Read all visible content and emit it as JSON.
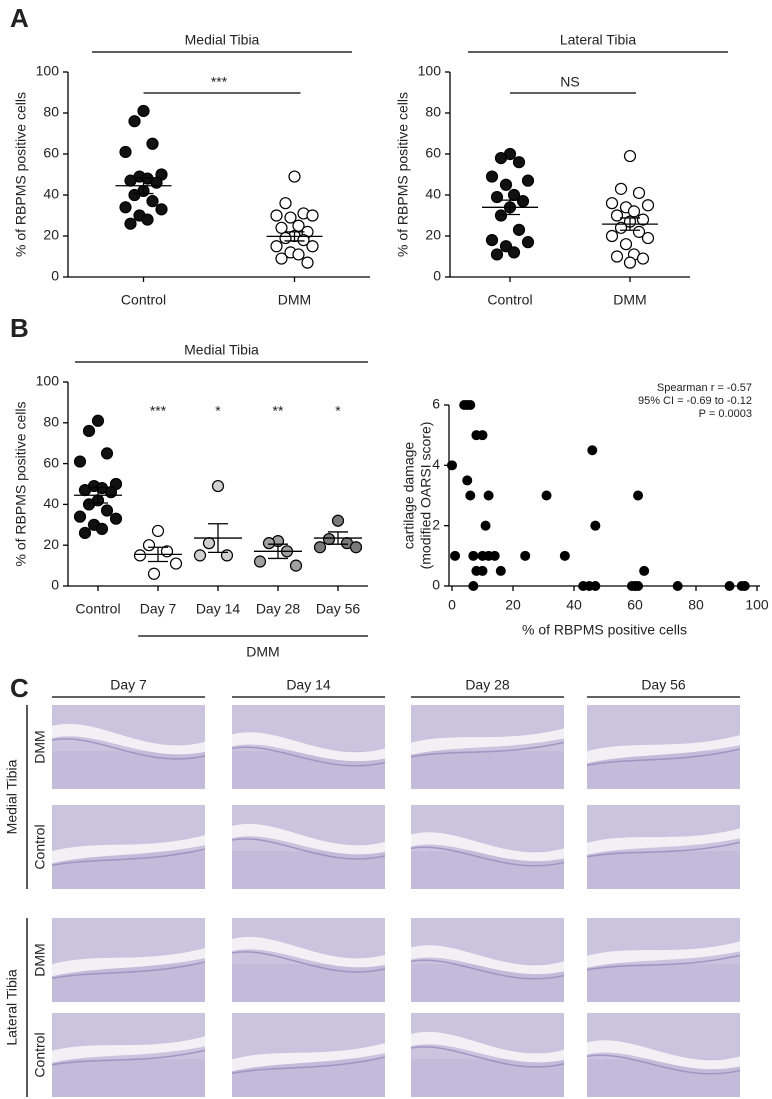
{
  "chart_data": [
    {
      "type": "dot",
      "panel": "A",
      "title": "Medial Tibia",
      "ylabel": "% of RBPMS positive cells",
      "ylim": [
        0,
        100
      ],
      "yticks": [
        0,
        20,
        40,
        60,
        80,
        100
      ],
      "comparison_label": "***",
      "groups": [
        {
          "category": "Control",
          "color": "#111111",
          "values": [
            81,
            76,
            65,
            61,
            50,
            49,
            48,
            47,
            46,
            42,
            40,
            37,
            34,
            33,
            30,
            28,
            26
          ],
          "mean": 44.5,
          "sem": 3.8
        },
        {
          "category": "DMM",
          "color": "#ffffff",
          "values": [
            49,
            36,
            31,
            30,
            30,
            29,
            25,
            24,
            22,
            20,
            19,
            18,
            15,
            15,
            12,
            11,
            9,
            7
          ],
          "mean": 19.8,
          "sem": 2.2
        }
      ]
    },
    {
      "type": "dot",
      "title": "Lateral Tibia",
      "ylabel": "% of RBPMS positive cells",
      "ylim": [
        0,
        100
      ],
      "yticks": [
        0,
        20,
        40,
        60,
        80,
        100
      ],
      "comparison_label": "NS",
      "groups": [
        {
          "category": "Control",
          "color": "#111111",
          "values": [
            60,
            58,
            56,
            49,
            47,
            45,
            40,
            39,
            37,
            34,
            30,
            23,
            18,
            17,
            15,
            12,
            11
          ],
          "mean": 34,
          "sem": 3.5
        },
        {
          "category": "DMM",
          "color": "#ffffff",
          "values": [
            59,
            43,
            41,
            36,
            35,
            34,
            32,
            30,
            28,
            27,
            24,
            22,
            20,
            19,
            16,
            11,
            10,
            9,
            7
          ],
          "mean": 25.8,
          "sem": 3
        }
      ]
    },
    {
      "type": "dot",
      "panel": "B",
      "title": "Medial Tibia",
      "ylabel": "% of RBPMS positive cells",
      "ylim": [
        0,
        100
      ],
      "yticks": [
        0,
        20,
        40,
        60,
        80,
        100
      ],
      "xgroup_label": "DMM",
      "groups": [
        {
          "category": "Control",
          "color": "#111111",
          "values": [
            81,
            76,
            65,
            61,
            50,
            49,
            48,
            47,
            46,
            42,
            40,
            37,
            34,
            33,
            30,
            28,
            26
          ],
          "mean": 44.5,
          "sem": 3.8
        },
        {
          "category": "Day 7",
          "color": "#ffffff",
          "values": [
            27,
            20,
            17,
            15,
            11,
            6
          ],
          "mean": 15.5,
          "sem": 3.5,
          "significance": "***"
        },
        {
          "category": "Day 14",
          "color": "#d0d0d0",
          "values": [
            49,
            21,
            15,
            15
          ],
          "mean": 23.5,
          "sem": 7,
          "significance": "*"
        },
        {
          "category": "Day 28",
          "color": "#a0a0a0",
          "values": [
            22,
            21,
            17,
            12,
            10
          ],
          "mean": 17,
          "sem": 3.5,
          "significance": "**"
        },
        {
          "category": "Day 56",
          "color": "#7a7a7a",
          "values": [
            32,
            23,
            21,
            19,
            19
          ],
          "mean": 23.5,
          "sem": 3,
          "significance": "*"
        }
      ]
    },
    {
      "type": "scatter",
      "xlabel": "% of RBPMS positive cells",
      "ylabel": [
        "cartilage damage",
        "(modified OARSI score)"
      ],
      "annotations": [
        "Spearman r = -0.57",
        "95% CI = -0.69 to -0.12",
        "P = 0.0003"
      ],
      "xlim": [
        0,
        100
      ],
      "xticks": [
        0,
        20,
        40,
        60,
        80,
        100
      ],
      "ylim": [
        0,
        6
      ],
      "yticks": [
        0,
        2,
        4,
        6
      ],
      "color": "#000000",
      "x": [
        0,
        1,
        4,
        5,
        6,
        5,
        6,
        7,
        7,
        8,
        10,
        8,
        10,
        10,
        11,
        12,
        12,
        14,
        16,
        24,
        31,
        37,
        43,
        45,
        46,
        47,
        47,
        59,
        60,
        61,
        61,
        63,
        74,
        91,
        95,
        96
      ],
      "y": [
        4,
        1,
        6,
        6,
        6,
        3.5,
        3,
        1,
        0,
        5,
        5,
        0.5,
        0.5,
        1,
        2,
        3,
        1,
        1,
        0.5,
        1,
        3,
        1,
        0,
        0,
        4.5,
        0,
        2,
        0,
        0,
        3,
        0,
        0.5,
        0,
        0,
        0,
        0
      ]
    }
  ],
  "panel_c": {
    "label": "C",
    "columns": [
      "Day 7",
      "Day 14",
      "Day 28",
      "Day 56"
    ],
    "sections": [
      {
        "name": "Medial Tibia",
        "rows": [
          "DMM",
          "Control"
        ]
      },
      {
        "name": "Lateral Tibia",
        "rows": [
          "DMM",
          "Control"
        ]
      }
    ]
  }
}
